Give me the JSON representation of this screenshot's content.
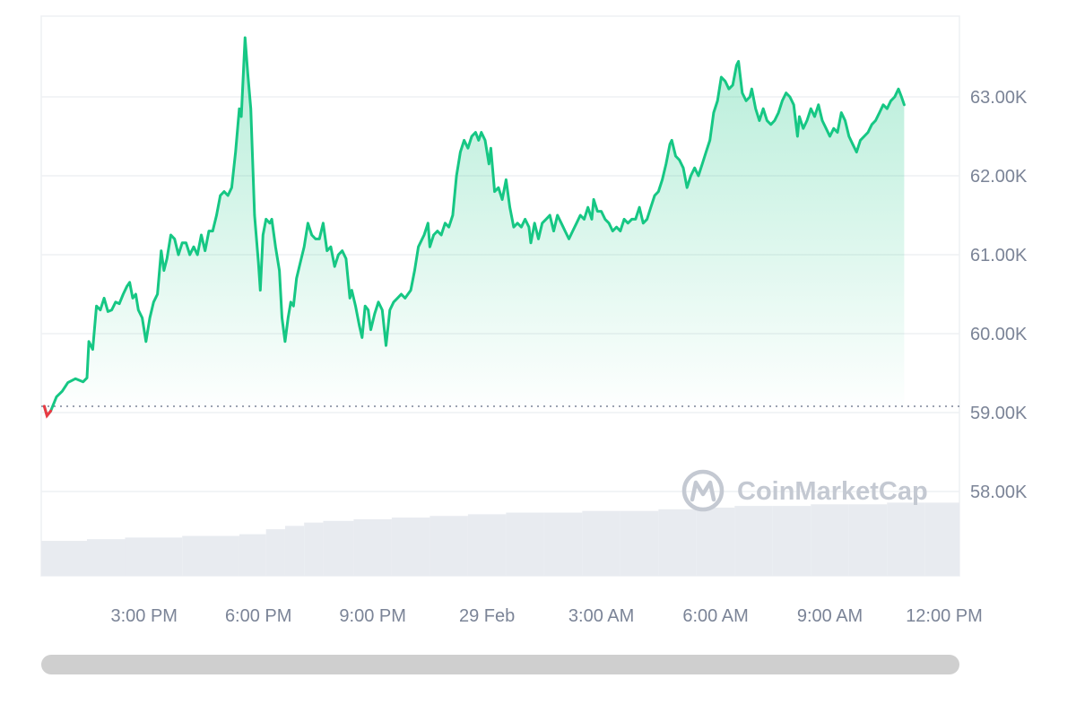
{
  "colors": {
    "up_line": "#16c784",
    "down_line": "#ea3943",
    "grid": "#eef0f3",
    "axis_text": "#7b8497",
    "volume": "#e8ebf0",
    "baseline": "#7b8497",
    "scrollbar": "#cfcfcf"
  },
  "watermark": {
    "icon": "coinmarketcap-logo-icon",
    "text": "CoinMarketCap"
  },
  "chart_data": {
    "type": "area",
    "title": "",
    "xlabel": "",
    "ylabel": "",
    "grid": true,
    "legend": "none",
    "y_axis_position": "right",
    "ylim": [
      57000,
      64000
    ],
    "y_ticks": [
      {
        "value": 58000,
        "label": "58.00K"
      },
      {
        "value": 59000,
        "label": "59.00K"
      },
      {
        "value": 60000,
        "label": "60.00K"
      },
      {
        "value": 61000,
        "label": "61.00K"
      },
      {
        "value": 62000,
        "label": "62.00K"
      },
      {
        "value": 63000,
        "label": "63.00K"
      }
    ],
    "x_range_hours": [
      12.3,
      36.4
    ],
    "x_ticks": [
      {
        "hour": 15,
        "label": "3:00 PM"
      },
      {
        "hour": 18,
        "label": "6:00 PM"
      },
      {
        "hour": 21,
        "label": "9:00 PM"
      },
      {
        "hour": 24,
        "label": "29 Feb"
      },
      {
        "hour": 27,
        "label": "3:00 AM"
      },
      {
        "hour": 30,
        "label": "6:00 AM"
      },
      {
        "hour": 33,
        "label": "9:00 AM"
      },
      {
        "hour": 36,
        "label": "12:00 PM"
      }
    ],
    "baseline_price": 59080,
    "series": [
      {
        "values": [
          [
            12.38,
            59080
          ],
          [
            12.45,
            58960
          ],
          [
            12.55,
            59020
          ],
          [
            12.7,
            59200
          ],
          [
            12.85,
            59270
          ],
          [
            13.0,
            59380
          ],
          [
            13.2,
            59430
          ],
          [
            13.4,
            59390
          ],
          [
            13.5,
            59440
          ],
          [
            13.55,
            59900
          ],
          [
            13.65,
            59800
          ],
          [
            13.75,
            60350
          ],
          [
            13.85,
            60300
          ],
          [
            13.95,
            60450
          ],
          [
            14.05,
            60280
          ],
          [
            14.15,
            60300
          ],
          [
            14.25,
            60400
          ],
          [
            14.35,
            60380
          ],
          [
            14.45,
            60500
          ],
          [
            14.55,
            60600
          ],
          [
            14.62,
            60650
          ],
          [
            14.7,
            60450
          ],
          [
            14.78,
            60500
          ],
          [
            14.85,
            60300
          ],
          [
            14.95,
            60200
          ],
          [
            15.05,
            59900
          ],
          [
            15.15,
            60200
          ],
          [
            15.25,
            60400
          ],
          [
            15.35,
            60500
          ],
          [
            15.45,
            61050
          ],
          [
            15.52,
            60800
          ],
          [
            15.6,
            60950
          ],
          [
            15.7,
            61250
          ],
          [
            15.8,
            61200
          ],
          [
            15.9,
            61000
          ],
          [
            16.0,
            61150
          ],
          [
            16.1,
            61150
          ],
          [
            16.2,
            61000
          ],
          [
            16.3,
            61100
          ],
          [
            16.4,
            61000
          ],
          [
            16.5,
            61250
          ],
          [
            16.6,
            61050
          ],
          [
            16.7,
            61300
          ],
          [
            16.8,
            61300
          ],
          [
            16.9,
            61500
          ],
          [
            17.0,
            61750
          ],
          [
            17.1,
            61800
          ],
          [
            17.2,
            61750
          ],
          [
            17.3,
            61850
          ],
          [
            17.4,
            62300
          ],
          [
            17.5,
            62850
          ],
          [
            17.55,
            62750
          ],
          [
            17.65,
            63750
          ],
          [
            17.72,
            63300
          ],
          [
            17.8,
            62850
          ],
          [
            17.9,
            61500
          ],
          [
            18.0,
            60900
          ],
          [
            18.05,
            60550
          ],
          [
            18.12,
            61250
          ],
          [
            18.2,
            61450
          ],
          [
            18.3,
            61400
          ],
          [
            18.35,
            61450
          ],
          [
            18.45,
            61100
          ],
          [
            18.55,
            60800
          ],
          [
            18.62,
            60200
          ],
          [
            18.7,
            59900
          ],
          [
            18.78,
            60200
          ],
          [
            18.85,
            60400
          ],
          [
            18.92,
            60350
          ],
          [
            19.0,
            60700
          ],
          [
            19.1,
            60900
          ],
          [
            19.2,
            61100
          ],
          [
            19.3,
            61400
          ],
          [
            19.4,
            61250
          ],
          [
            19.5,
            61200
          ],
          [
            19.6,
            61200
          ],
          [
            19.7,
            61400
          ],
          [
            19.8,
            61050
          ],
          [
            19.9,
            61100
          ],
          [
            20.0,
            60850
          ],
          [
            20.1,
            61000
          ],
          [
            20.2,
            61050
          ],
          [
            20.3,
            60950
          ],
          [
            20.4,
            60450
          ],
          [
            20.45,
            60550
          ],
          [
            20.55,
            60350
          ],
          [
            20.65,
            60100
          ],
          [
            20.72,
            59950
          ],
          [
            20.8,
            60350
          ],
          [
            20.88,
            60300
          ],
          [
            20.95,
            60050
          ],
          [
            21.05,
            60250
          ],
          [
            21.15,
            60400
          ],
          [
            21.25,
            60300
          ],
          [
            21.35,
            59850
          ],
          [
            21.45,
            60300
          ],
          [
            21.55,
            60400
          ],
          [
            21.65,
            60450
          ],
          [
            21.75,
            60500
          ],
          [
            21.85,
            60450
          ],
          [
            22.0,
            60550
          ],
          [
            22.1,
            60800
          ],
          [
            22.2,
            61100
          ],
          [
            22.35,
            61250
          ],
          [
            22.45,
            61400
          ],
          [
            22.5,
            61100
          ],
          [
            22.6,
            61250
          ],
          [
            22.7,
            61300
          ],
          [
            22.8,
            61250
          ],
          [
            22.9,
            61400
          ],
          [
            23.0,
            61350
          ],
          [
            23.1,
            61500
          ],
          [
            23.2,
            62000
          ],
          [
            23.3,
            62300
          ],
          [
            23.4,
            62450
          ],
          [
            23.5,
            62350
          ],
          [
            23.6,
            62500
          ],
          [
            23.7,
            62550
          ],
          [
            23.78,
            62450
          ],
          [
            23.85,
            62550
          ],
          [
            23.95,
            62450
          ],
          [
            24.05,
            62150
          ],
          [
            24.1,
            62350
          ],
          [
            24.2,
            61800
          ],
          [
            24.3,
            61850
          ],
          [
            24.4,
            61700
          ],
          [
            24.5,
            61950
          ],
          [
            24.6,
            61600
          ],
          [
            24.7,
            61350
          ],
          [
            24.8,
            61400
          ],
          [
            24.9,
            61350
          ],
          [
            25.0,
            61450
          ],
          [
            25.1,
            61350
          ],
          [
            25.15,
            61150
          ],
          [
            25.25,
            61400
          ],
          [
            25.35,
            61200
          ],
          [
            25.45,
            61400
          ],
          [
            25.55,
            61450
          ],
          [
            25.65,
            61500
          ],
          [
            25.75,
            61300
          ],
          [
            25.85,
            61500
          ],
          [
            25.95,
            61400
          ],
          [
            26.05,
            61300
          ],
          [
            26.15,
            61200
          ],
          [
            26.25,
            61300
          ],
          [
            26.35,
            61400
          ],
          [
            26.45,
            61500
          ],
          [
            26.55,
            61450
          ],
          [
            26.65,
            61600
          ],
          [
            26.75,
            61450
          ],
          [
            26.8,
            61700
          ],
          [
            26.9,
            61550
          ],
          [
            27.0,
            61550
          ],
          [
            27.1,
            61450
          ],
          [
            27.2,
            61400
          ],
          [
            27.3,
            61300
          ],
          [
            27.4,
            61350
          ],
          [
            27.5,
            61300
          ],
          [
            27.6,
            61450
          ],
          [
            27.7,
            61400
          ],
          [
            27.8,
            61450
          ],
          [
            27.9,
            61450
          ],
          [
            28.0,
            61600
          ],
          [
            28.1,
            61400
          ],
          [
            28.2,
            61450
          ],
          [
            28.3,
            61600
          ],
          [
            28.4,
            61750
          ],
          [
            28.5,
            61800
          ],
          [
            28.6,
            61950
          ],
          [
            28.7,
            62150
          ],
          [
            28.8,
            62400
          ],
          [
            28.85,
            62450
          ],
          [
            28.95,
            62250
          ],
          [
            29.05,
            62200
          ],
          [
            29.15,
            62100
          ],
          [
            29.25,
            61850
          ],
          [
            29.35,
            62000
          ],
          [
            29.45,
            62100
          ],
          [
            29.55,
            62000
          ],
          [
            29.65,
            62150
          ],
          [
            29.75,
            62300
          ],
          [
            29.85,
            62450
          ],
          [
            29.95,
            62800
          ],
          [
            30.05,
            62950
          ],
          [
            30.15,
            63250
          ],
          [
            30.25,
            63200
          ],
          [
            30.35,
            63100
          ],
          [
            30.45,
            63150
          ],
          [
            30.55,
            63400
          ],
          [
            30.6,
            63450
          ],
          [
            30.7,
            63050
          ],
          [
            30.8,
            62950
          ],
          [
            30.9,
            63000
          ],
          [
            30.95,
            63100
          ],
          [
            31.05,
            62850
          ],
          [
            31.15,
            62700
          ],
          [
            31.25,
            62850
          ],
          [
            31.35,
            62700
          ],
          [
            31.45,
            62650
          ],
          [
            31.55,
            62700
          ],
          [
            31.65,
            62800
          ],
          [
            31.75,
            62950
          ],
          [
            31.85,
            63050
          ],
          [
            31.95,
            63000
          ],
          [
            32.05,
            62900
          ],
          [
            32.15,
            62500
          ],
          [
            32.2,
            62750
          ],
          [
            32.3,
            62600
          ],
          [
            32.4,
            62700
          ],
          [
            32.5,
            62850
          ],
          [
            32.6,
            62750
          ],
          [
            32.7,
            62900
          ],
          [
            32.8,
            62700
          ],
          [
            32.9,
            62600
          ],
          [
            33.0,
            62500
          ],
          [
            33.1,
            62600
          ],
          [
            33.2,
            62550
          ],
          [
            33.3,
            62800
          ],
          [
            33.4,
            62700
          ],
          [
            33.5,
            62500
          ],
          [
            33.6,
            62400
          ],
          [
            33.7,
            62300
          ],
          [
            33.8,
            62450
          ],
          [
            33.9,
            62500
          ],
          [
            34.0,
            62550
          ],
          [
            34.1,
            62650
          ],
          [
            34.2,
            62700
          ],
          [
            34.3,
            62800
          ],
          [
            34.4,
            62900
          ],
          [
            34.5,
            62850
          ],
          [
            34.6,
            62950
          ],
          [
            34.7,
            63000
          ],
          [
            34.8,
            63100
          ],
          [
            34.88,
            63000
          ],
          [
            34.95,
            62900
          ]
        ]
      }
    ],
    "volume_bars": [
      [
        12.3,
        0.21
      ],
      [
        13.5,
        0.22
      ],
      [
        14.5,
        0.23
      ],
      [
        16.0,
        0.24
      ],
      [
        17.5,
        0.25
      ],
      [
        18.2,
        0.28
      ],
      [
        18.7,
        0.3
      ],
      [
        19.2,
        0.32
      ],
      [
        19.7,
        0.33
      ],
      [
        20.5,
        0.34
      ],
      [
        21.5,
        0.35
      ],
      [
        22.5,
        0.36
      ],
      [
        23.5,
        0.37
      ],
      [
        24.5,
        0.38
      ],
      [
        25.5,
        0.38
      ],
      [
        26.5,
        0.39
      ],
      [
        27.5,
        0.39
      ],
      [
        28.5,
        0.4
      ],
      [
        29.5,
        0.41
      ],
      [
        30.5,
        0.42
      ],
      [
        31.5,
        0.42
      ],
      [
        32.5,
        0.43
      ],
      [
        33.5,
        0.43
      ],
      [
        34.5,
        0.44
      ],
      [
        35.5,
        0.44
      ]
    ]
  }
}
